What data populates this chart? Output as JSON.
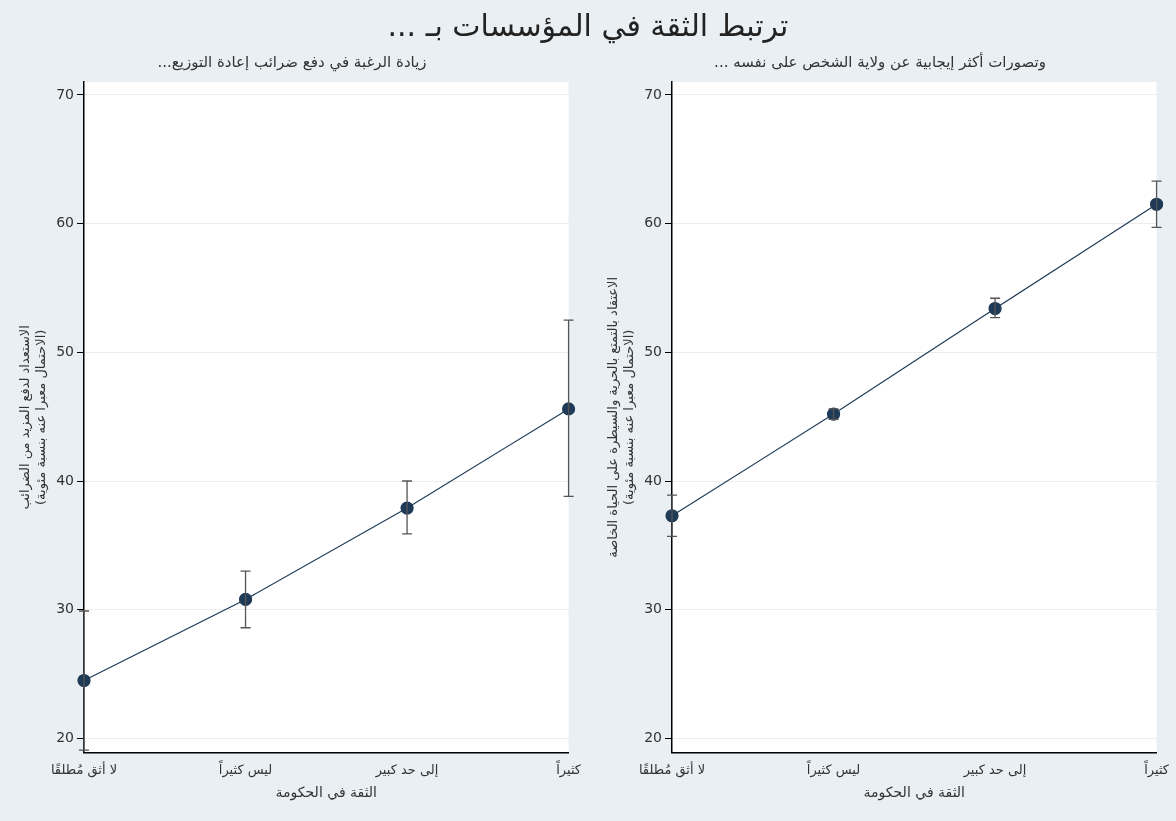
{
  "chart_data": [
    {
      "type": "line",
      "title": "ترتبط الثقة في المؤسسات بـ ...",
      "subtitle": "...زيادة الرغبة في دفع ضرائب إعادة التوزيع",
      "xlabel": "الثقة في الحكومة",
      "ylabel": "الاستعداد لدفع المزيد من الضرائب\n(الاحتمال معبرا عنه بنسبة مئوية)",
      "categories": [
        "لا أثق مُطلقًا",
        "ليس كثيراً",
        "إلى حد كبير",
        "كثيراً"
      ],
      "series": [
        {
          "color": "#1f3a57",
          "values": [
            24.5,
            30.8,
            37.9,
            45.6
          ],
          "errors": [
            [
              19.1,
              29.9
            ],
            [
              28.6,
              33.0
            ],
            [
              35.9,
              40.0
            ],
            [
              38.8,
              52.5
            ]
          ]
        }
      ],
      "ylim": [
        18.9,
        71
      ],
      "yticks": [
        20,
        30,
        40,
        50,
        60,
        70
      ],
      "grid": "y",
      "marker": "circle",
      "line_style": "solid",
      "legend": false
    },
    {
      "type": "line",
      "subtitle": "... وتصورات أكثر إيجابية عن ولاية الشخص على نفسه",
      "xlabel": "الثقة في الحكومة",
      "ylabel": "الاعتقاد بالتمتع بالحرية والسيطرة على الحياة الخاصة\n(الاحتمال معبرا عنه بنسبة مئوية)",
      "categories": [
        "لا أثق مُطلقًا",
        "ليس كثيراً",
        "إلى حد كبير",
        "كثيراً"
      ],
      "series": [
        {
          "color": "#1f3a57",
          "values": [
            37.3,
            45.2,
            53.4,
            61.5
          ],
          "errors": [
            [
              35.7,
              38.9
            ],
            [
              44.8,
              45.6
            ],
            [
              52.7,
              54.2
            ],
            [
              59.7,
              63.3
            ]
          ]
        }
      ],
      "ylim": [
        18.9,
        71
      ],
      "yticks": [
        20,
        30,
        40,
        50,
        60,
        70
      ],
      "grid": "y",
      "marker": "circle",
      "line_style": "solid",
      "legend": false
    }
  ]
}
